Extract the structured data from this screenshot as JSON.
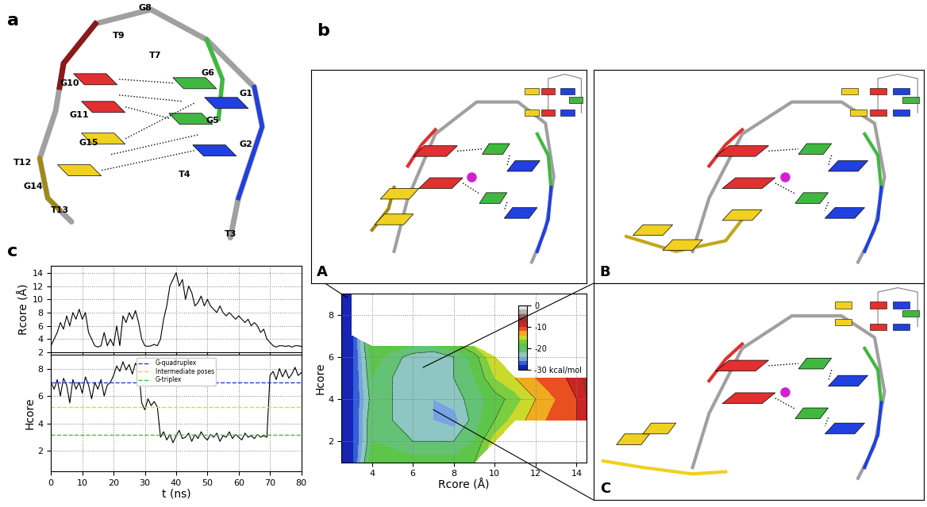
{
  "panel_labels": [
    "a",
    "b",
    "c"
  ],
  "structure_labels": [
    "G8",
    "T9",
    "T7",
    "G10",
    "G6",
    "G1",
    "G11",
    "G15",
    "G5",
    "T12",
    "G14",
    "G2",
    "T4",
    "T13",
    "T3"
  ],
  "inset_labels": [
    "A",
    "B",
    "C"
  ],
  "chart_data": [
    {
      "type": "line",
      "color": "#000000",
      "ylabel": "Rcore (Å)",
      "x": [
        0,
        1,
        2,
        3,
        4,
        5,
        6,
        7,
        8,
        9,
        10,
        11,
        12,
        13,
        14,
        15,
        16,
        17,
        18,
        19,
        20,
        21,
        22,
        23,
        24,
        25,
        26,
        27,
        28,
        29,
        30,
        31,
        32,
        33,
        34,
        35,
        36,
        37,
        38,
        39,
        40,
        41,
        42,
        43,
        44,
        45,
        46,
        47,
        48,
        49,
        50,
        51,
        52,
        53,
        54,
        55,
        56,
        57,
        58,
        59,
        60,
        61,
        62,
        63,
        64,
        65,
        66,
        67,
        68,
        69,
        70,
        71,
        72,
        73,
        74,
        75,
        76,
        77,
        78,
        79,
        80
      ],
      "values": [
        3,
        4,
        5,
        6.5,
        5.5,
        7.5,
        6,
        8,
        7,
        8.5,
        7,
        8,
        5,
        4,
        3,
        2.8,
        3,
        5,
        3,
        4,
        3,
        6,
        3,
        7.5,
        6.5,
        8,
        7,
        8.3,
        6.5,
        4,
        3,
        2.9,
        3,
        3.2,
        3,
        4,
        7,
        9,
        12,
        13,
        14,
        12,
        13,
        10,
        12,
        11,
        9,
        9.5,
        10.5,
        9,
        10,
        9,
        8.5,
        8,
        9,
        8,
        7.5,
        8,
        7.5,
        7,
        7.5,
        7,
        6.5,
        7,
        6,
        6.5,
        6,
        5,
        5.5,
        4,
        3.5,
        3,
        2.8,
        3,
        3,
        2.9,
        3,
        2.8,
        3,
        3,
        2.9
      ],
      "xlim": [
        0,
        80
      ],
      "xticks": [
        0,
        10,
        20,
        30,
        40,
        50,
        60,
        70,
        80
      ],
      "ylim": [
        2,
        15
      ],
      "yticks": [
        2,
        4,
        6,
        8,
        10,
        12,
        14
      ],
      "grid": true,
      "tick_labels": "y"
    },
    {
      "type": "line",
      "color": "#000000",
      "xlabel": "t (ns)",
      "ylabel": "Hcore",
      "x": [
        0,
        1,
        2,
        3,
        4,
        5,
        6,
        7,
        8,
        9,
        10,
        11,
        12,
        13,
        14,
        15,
        16,
        17,
        18,
        19,
        20,
        21,
        22,
        23,
        24,
        25,
        26,
        27,
        28,
        29,
        30,
        31,
        32,
        33,
        34,
        35,
        36,
        37,
        38,
        39,
        40,
        41,
        42,
        43,
        44,
        45,
        46,
        47,
        48,
        49,
        50,
        51,
        52,
        53,
        54,
        55,
        56,
        57,
        58,
        59,
        60,
        61,
        62,
        63,
        64,
        65,
        66,
        67,
        68,
        69,
        70,
        71,
        72,
        73,
        74,
        75,
        76,
        77,
        78,
        79,
        80
      ],
      "values": [
        7,
        6.5,
        7.2,
        6,
        7.3,
        6.8,
        5.5,
        7.2,
        6.5,
        7,
        6.2,
        7.4,
        6.8,
        5.8,
        7,
        6.5,
        7.2,
        6,
        6.8,
        7,
        7.5,
        8.2,
        7.8,
        8.5,
        7.9,
        8.3,
        7.6,
        8.4,
        8,
        5.5,
        5,
        5.8,
        5.3,
        5.6,
        5.2,
        3,
        3.4,
        2.8,
        3.2,
        2.6,
        3.1,
        3.5,
        2.9,
        3,
        3.3,
        2.7,
        3.2,
        2.9,
        3.4,
        3,
        2.8,
        3.2,
        3,
        3.3,
        2.7,
        3.1,
        3,
        3.4,
        2.9,
        3.2,
        3,
        2.8,
        3.3,
        3,
        3.1,
        2.9,
        3.2,
        3,
        3.1,
        3,
        7.5,
        7.8,
        7.2,
        8,
        7.4,
        7.9,
        7.3,
        7.6,
        8.1,
        7.5,
        7.7
      ],
      "hlines": [
        {
          "name": "G-quadruplex",
          "color": "#2040e0",
          "line_style": "dashed",
          "value": 7
        },
        {
          "name": "Intermediate poses",
          "color": "#e8d820",
          "line_style": "dashed",
          "value": 5.2
        },
        {
          "name": "G-triplex",
          "color": "#40c040",
          "line_style": "dashed",
          "value": 3.2
        }
      ],
      "legend": "upper center",
      "xlim": [
        0,
        80
      ],
      "xticks": [
        0,
        10,
        20,
        30,
        40,
        50,
        60,
        70,
        80
      ],
      "ylim": [
        0.5,
        9
      ],
      "yticks": [
        2,
        4,
        6,
        8
      ],
      "grid": true
    },
    {
      "type": "contour",
      "xlabel": "Rcore (Å)",
      "ylabel": "Hcore",
      "x": [
        2.5,
        3,
        4,
        5,
        6,
        7,
        8,
        9,
        10,
        11,
        12,
        13,
        14,
        14.5
      ],
      "y": [
        1,
        2,
        3,
        4,
        5,
        6,
        6.5,
        7,
        8,
        9
      ],
      "cells": [
        [
          -30,
          -29,
          -18,
          -18,
          -19,
          -19,
          -19,
          -18,
          null,
          null,
          null,
          null,
          null,
          null
        ],
        [
          -30,
          -29,
          -20,
          -21,
          -22,
          -22,
          -22,
          -20,
          -15,
          null,
          null,
          null,
          null,
          null
        ],
        [
          -30,
          -29,
          -20,
          -22,
          -23,
          -24,
          -25,
          -21,
          -18,
          -15,
          -13,
          -11,
          -10,
          -8
        ],
        [
          -30,
          -29,
          -21,
          -22,
          -23,
          -24,
          -23,
          -21,
          -19,
          -17,
          -14,
          -12,
          -10,
          -8
        ],
        [
          -30,
          -29,
          -20,
          -22,
          -23,
          -24,
          -22,
          -20,
          -16,
          -14,
          -12,
          -11,
          -9,
          -7
        ],
        [
          -30,
          -29,
          -19,
          -21,
          -23,
          -24,
          -22,
          -19,
          -14,
          null,
          null,
          null,
          null,
          null
        ],
        [
          -30,
          -29,
          -18,
          -19,
          -20,
          -20,
          -19,
          -16,
          null,
          null,
          null,
          null,
          null,
          null
        ],
        [
          -30,
          -29,
          null,
          null,
          null,
          null,
          null,
          null,
          null,
          null,
          null,
          null,
          null,
          null
        ],
        [
          -30,
          -29,
          null,
          null,
          null,
          null,
          null,
          null,
          null,
          null,
          null,
          null,
          null,
          null
        ],
        [
          -30,
          -29,
          null,
          null,
          null,
          null,
          null,
          null,
          null,
          null,
          null,
          null,
          null,
          null
        ]
      ],
      "colorbar_lim": [
        -30,
        0
      ],
      "colorbar_ticks": [
        0,
        -10,
        -20,
        {
          "value": -30,
          "label": "-30 kcal/mol"
        }
      ],
      "xlim": [
        2.5,
        14.5
      ],
      "xticks": [
        4,
        6,
        8,
        10,
        12,
        14
      ],
      "ylim": [
        1,
        9
      ],
      "yticks": [
        2,
        4,
        6,
        8
      ],
      "grid": true
    }
  ]
}
